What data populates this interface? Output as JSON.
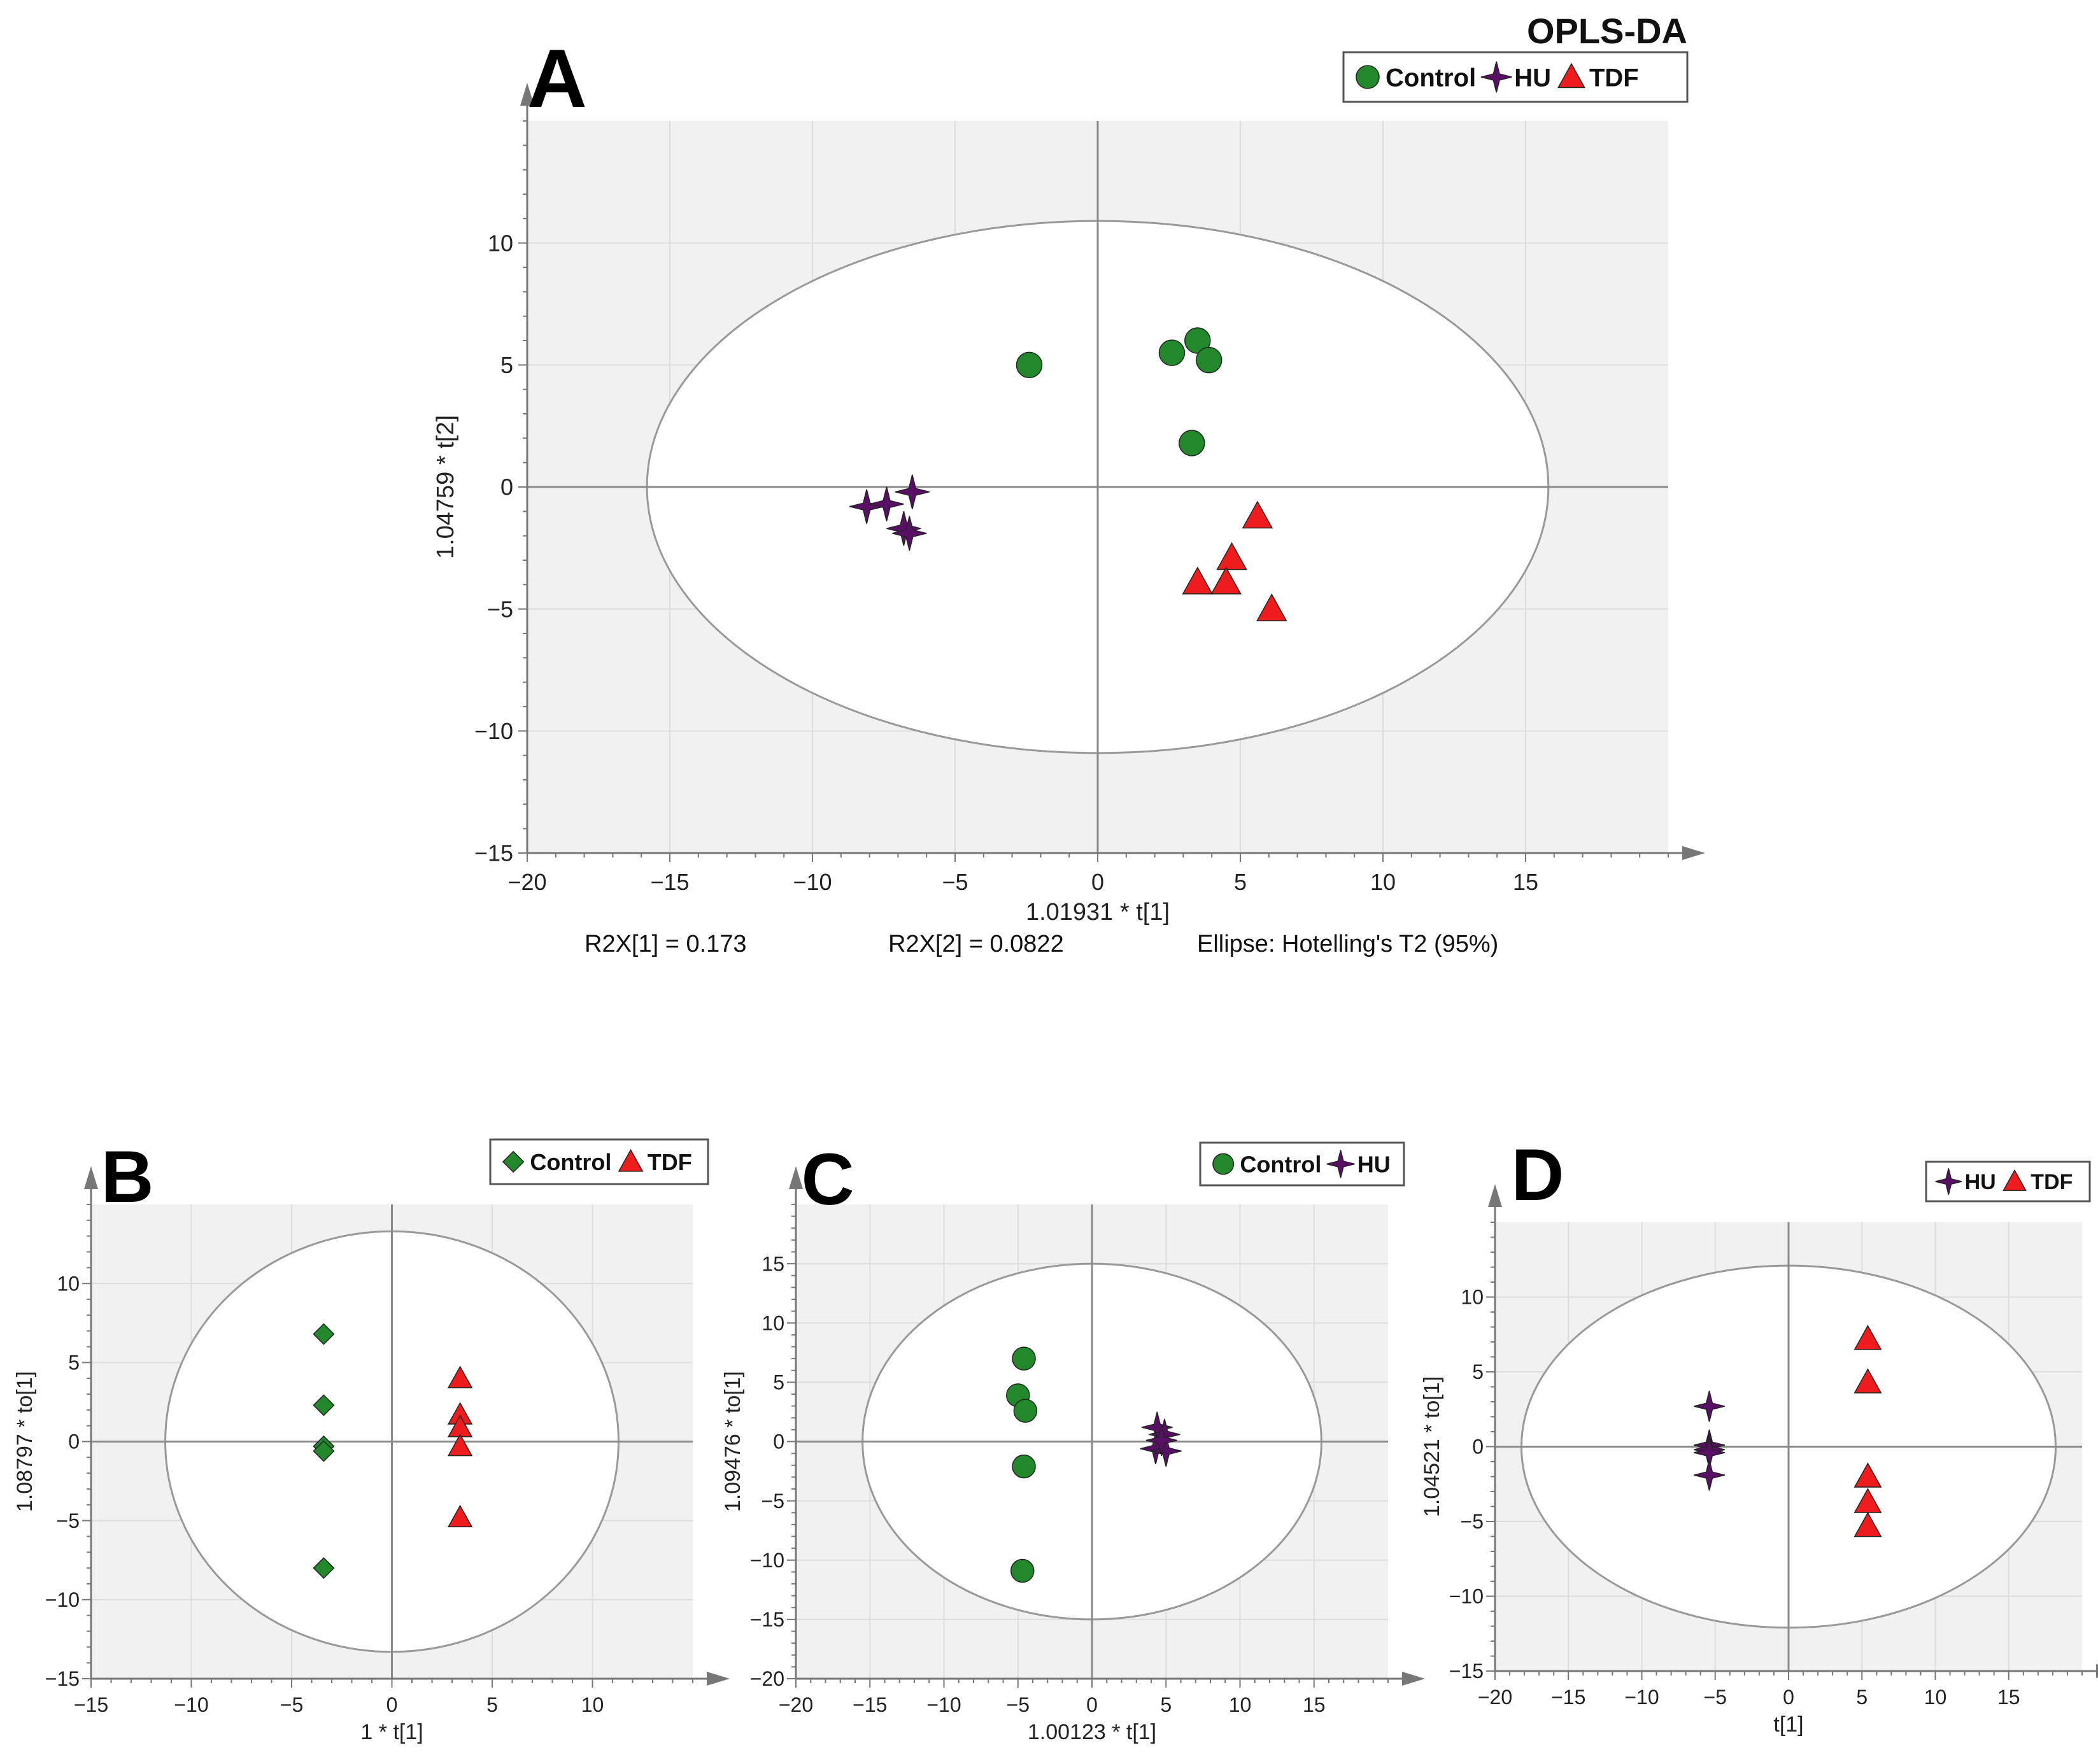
{
  "colors": {
    "control": "#22882b",
    "hu": "#5a0f66",
    "tdf": "#ee1c1c",
    "plot_bg": "#f1f1f1",
    "grid": "#dddddd",
    "ellipse": "#999999",
    "axis": "#777777"
  },
  "chart_data": [
    {
      "id": "A",
      "type": "scatter",
      "panel_label": "A",
      "title": "OPLS-DA",
      "xlabel": "1.01931 * t[1]",
      "ylabel": "1.04759 * t[2]",
      "xlim": [
        -20,
        20
      ],
      "ylim": [
        -15,
        15
      ],
      "xticks": [
        -20,
        -15,
        -10,
        -5,
        0,
        5,
        10,
        15
      ],
      "yticks": [
        -15,
        -10,
        -5,
        0,
        5,
        10
      ],
      "ellipse": {
        "rx": 15.8,
        "ry": 10.9
      },
      "legend": [
        {
          "label": "Control",
          "marker": "circle",
          "color_key": "control"
        },
        {
          "label": "HU",
          "marker": "star",
          "color_key": "hu"
        },
        {
          "label": "TDF",
          "marker": "triangle",
          "color_key": "tdf"
        }
      ],
      "footer": {
        "r2x1": "R2X[1] = 0.173",
        "r2x2": "R2X[2] = 0.0822",
        "ellipse_note": "Ellipse: Hotelling's T2 (95%)"
      },
      "series": [
        {
          "name": "Control",
          "marker": "circle",
          "color_key": "control",
          "points": [
            [
              -2.4,
              5.0
            ],
            [
              2.6,
              5.5
            ],
            [
              3.5,
              6.0
            ],
            [
              3.9,
              5.2
            ],
            [
              3.3,
              1.8
            ]
          ]
        },
        {
          "name": "HU",
          "marker": "star",
          "color_key": "hu",
          "points": [
            [
              -8.1,
              -0.8
            ],
            [
              -7.4,
              -0.7
            ],
            [
              -6.5,
              -0.2
            ],
            [
              -6.8,
              -1.7
            ],
            [
              -6.6,
              -1.9
            ]
          ]
        },
        {
          "name": "TDF",
          "marker": "triangle",
          "color_key": "tdf",
          "points": [
            [
              5.6,
              -1.2
            ],
            [
              4.7,
              -2.9
            ],
            [
              3.5,
              -3.9
            ],
            [
              4.5,
              -3.9
            ],
            [
              6.1,
              -5.0
            ]
          ]
        }
      ]
    },
    {
      "id": "B",
      "type": "scatter",
      "panel_label": "B",
      "xlabel": "1 * t[1]",
      "ylabel": "1.08797 * to[1]",
      "xlim": [
        -15,
        15
      ],
      "ylim": [
        -15,
        15
      ],
      "xticks": [
        -15,
        -10,
        -5,
        0,
        5,
        10
      ],
      "yticks": [
        -15,
        -10,
        -5,
        0,
        5,
        10
      ],
      "ellipse": {
        "rx": 11.3,
        "ry": 13.3
      },
      "legend": [
        {
          "label": "Control",
          "marker": "diamond",
          "color_key": "control"
        },
        {
          "label": "TDF",
          "marker": "triangle",
          "color_key": "tdf"
        }
      ],
      "series": [
        {
          "name": "Control",
          "marker": "diamond",
          "color_key": "control",
          "points": [
            [
              -3.4,
              6.8
            ],
            [
              -3.4,
              2.3
            ],
            [
              -3.4,
              -0.3
            ],
            [
              -3.4,
              -0.6
            ],
            [
              -3.4,
              -8.0
            ]
          ]
        },
        {
          "name": "TDF",
          "marker": "triangle",
          "color_key": "tdf",
          "points": [
            [
              3.4,
              4.0
            ],
            [
              3.4,
              1.7
            ],
            [
              3.4,
              0.9
            ],
            [
              3.4,
              -0.3
            ],
            [
              3.4,
              -4.8
            ]
          ]
        }
      ]
    },
    {
      "id": "C",
      "type": "scatter",
      "panel_label": "C",
      "xlabel": "1.00123 * t[1]",
      "ylabel": "1.09476 * to[1]",
      "xlim": [
        -20,
        20
      ],
      "ylim": [
        -20,
        20
      ],
      "xticks": [
        -20,
        -15,
        -10,
        -5,
        0,
        5,
        10,
        15
      ],
      "yticks": [
        -20,
        -15,
        -10,
        -5,
        0,
        5,
        10,
        15
      ],
      "ellipse": {
        "rx": 15.5,
        "ry": 15.0
      },
      "legend": [
        {
          "label": "Control",
          "marker": "circle",
          "color_key": "control"
        },
        {
          "label": "HU",
          "marker": "star",
          "color_key": "hu"
        }
      ],
      "series": [
        {
          "name": "Control",
          "marker": "circle",
          "color_key": "control",
          "points": [
            [
              -4.6,
              7.0
            ],
            [
              -5.0,
              3.9
            ],
            [
              -4.5,
              2.6
            ],
            [
              -4.6,
              -2.1
            ],
            [
              -4.7,
              -10.9
            ]
          ]
        },
        {
          "name": "HU",
          "marker": "star",
          "color_key": "hu",
          "points": [
            [
              4.4,
              1.2
            ],
            [
              4.9,
              0.6
            ],
            [
              4.3,
              -0.6
            ],
            [
              5.0,
              -0.8
            ],
            [
              4.7,
              0.1
            ]
          ]
        }
      ]
    },
    {
      "id": "D",
      "type": "scatter",
      "panel_label": "D",
      "xlabel": "t[1]",
      "ylabel": "1.04521 * to[1]",
      "xlim": [
        -20,
        20
      ],
      "ylim": [
        -15,
        15
      ],
      "xticks": [
        -20,
        -15,
        -10,
        -5,
        0,
        5,
        10,
        15
      ],
      "yticks": [
        -15,
        -10,
        -5,
        0,
        5,
        10
      ],
      "ellipse": {
        "rx": 18.2,
        "ry": 12.1
      },
      "legend": [
        {
          "label": "HU",
          "marker": "star",
          "color_key": "hu"
        },
        {
          "label": "TDF",
          "marker": "triangle",
          "color_key": "tdf"
        }
      ],
      "series": [
        {
          "name": "HU",
          "marker": "star",
          "color_key": "hu",
          "points": [
            [
              -5.4,
              2.7
            ],
            [
              -5.4,
              0.1
            ],
            [
              -5.4,
              -0.2
            ],
            [
              -5.4,
              -0.4
            ],
            [
              -5.4,
              -1.9
            ]
          ]
        },
        {
          "name": "TDF",
          "marker": "triangle",
          "color_key": "tdf",
          "points": [
            [
              5.4,
              7.2
            ],
            [
              5.4,
              4.3
            ],
            [
              5.4,
              -2.0
            ],
            [
              5.4,
              -3.7
            ],
            [
              5.4,
              -5.3
            ]
          ]
        }
      ]
    }
  ]
}
